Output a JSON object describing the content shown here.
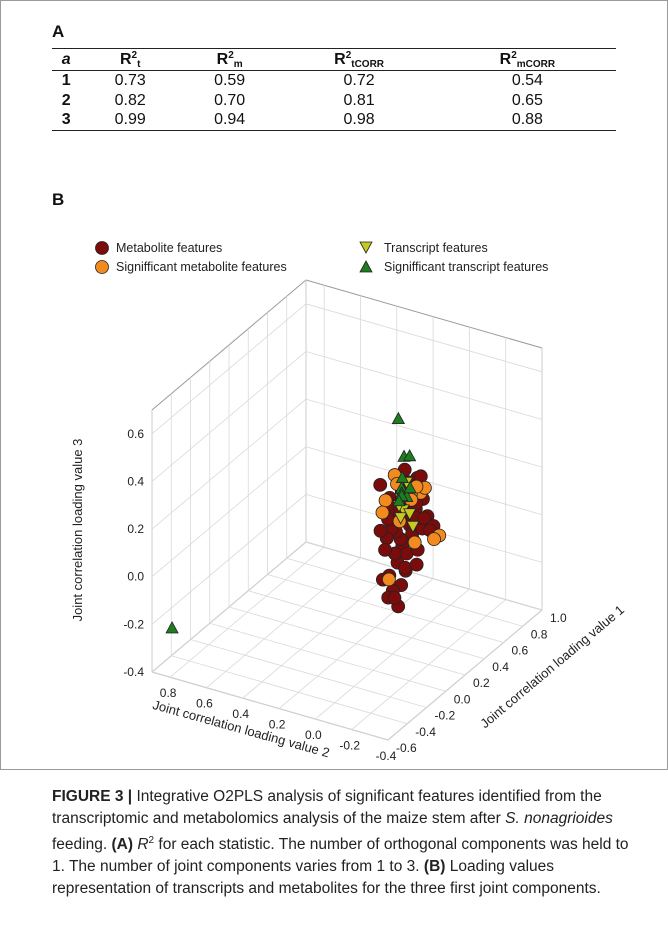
{
  "panel_a": {
    "label": "A",
    "headers": {
      "a": "a",
      "r2t": {
        "base": "R",
        "sup": "2",
        "sub": "t"
      },
      "r2m": {
        "base": "R",
        "sup": "2",
        "sub": "m"
      },
      "r2tcorr": {
        "base": "R",
        "sup": "2",
        "sub": "tCORR"
      },
      "r2mcorr": {
        "base": "R",
        "sup": "2",
        "sub": "mCORR"
      }
    },
    "rows": [
      {
        "a": "1",
        "r2t": "0.73",
        "r2m": "0.59",
        "r2tcorr": "0.72",
        "r2mcorr": "0.54"
      },
      {
        "a": "2",
        "r2t": "0.82",
        "r2m": "0.70",
        "r2tcorr": "0.81",
        "r2mcorr": "0.65"
      },
      {
        "a": "3",
        "r2t": "0.99",
        "r2m": "0.94",
        "r2tcorr": "0.98",
        "r2mcorr": "0.88"
      }
    ]
  },
  "panel_b": {
    "label": "B",
    "legend": {
      "metabolite": "Metabolite features",
      "sig_metabolite": "Signifficant metabolite features",
      "transcript": "Transcript features",
      "sig_transcript": "Signifficant transcript features"
    },
    "colors": {
      "metabolite": "#7a0c0c",
      "sig_metabolite": "#f28a1e",
      "transcript": "#c6c820",
      "sig_transcript": "#1e7d1e"
    }
  },
  "chart_data": {
    "type": "scatter",
    "title": "",
    "xlabel": "Joint correlation loading value 2",
    "ylabel": "Joint correlation loading value 1",
    "zlabel": "Joint correlation loading value 3",
    "x_ticks": [
      "0.8",
      "0.6",
      "0.4",
      "0.2",
      "0.0",
      "-0.2",
      "-0.4"
    ],
    "y_ticks": [
      "-0.6",
      "-0.4",
      "-0.2",
      "0.0",
      "0.2",
      "0.4",
      "0.6",
      "0.8",
      "1.0"
    ],
    "z_ticks": [
      "-0.4",
      "-0.2",
      "0.0",
      "0.2",
      "0.4",
      "0.6"
    ],
    "xlim": [
      -0.4,
      0.9
    ],
    "ylim": [
      -0.6,
      1.0
    ],
    "zlim": [
      -0.4,
      0.7
    ],
    "legend_position": "top",
    "series": [
      {
        "name": "Metabolite features",
        "key": "metabolite",
        "points": [
          [
            0.02,
            0.34,
            0.0
          ],
          [
            0.04,
            0.36,
            0.02
          ],
          [
            -0.01,
            0.33,
            -0.02
          ],
          [
            0.06,
            0.35,
            0.05
          ],
          [
            0.0,
            0.38,
            0.08
          ],
          [
            0.03,
            0.31,
            -0.06
          ],
          [
            0.07,
            0.37,
            0.1
          ],
          [
            -0.03,
            0.36,
            0.03
          ],
          [
            0.05,
            0.32,
            -0.03
          ],
          [
            0.01,
            0.4,
            0.12
          ],
          [
            0.08,
            0.34,
            0.06
          ],
          [
            -0.02,
            0.3,
            -0.08
          ],
          [
            0.04,
            0.39,
            0.15
          ],
          [
            0.09,
            0.36,
            0.13
          ],
          [
            0.0,
            0.34,
            0.18
          ],
          [
            0.06,
            0.41,
            0.2
          ],
          [
            -0.04,
            0.33,
            0.07
          ],
          [
            0.02,
            0.37,
            -0.1
          ],
          [
            0.1,
            0.33,
            0.02
          ],
          [
            0.03,
            0.42,
            0.24
          ],
          [
            -0.05,
            0.38,
            0.11
          ],
          [
            0.07,
            0.3,
            -0.12
          ],
          [
            0.05,
            0.45,
            0.22
          ],
          [
            -0.06,
            0.35,
            0.0
          ],
          [
            0.11,
            0.38,
            0.17
          ],
          [
            0.01,
            0.31,
            -0.15
          ],
          [
            0.08,
            0.43,
            0.09
          ],
          [
            -0.01,
            0.44,
            0.26
          ],
          [
            0.12,
            0.35,
            -0.04
          ],
          [
            0.04,
            0.28,
            -0.17
          ],
          [
            -0.03,
            0.4,
            0.19
          ],
          [
            0.09,
            0.47,
            0.14
          ],
          [
            0.02,
            0.46,
            0.05
          ],
          [
            -0.07,
            0.32,
            -0.05
          ],
          [
            0.06,
            0.27,
            -0.2
          ],
          [
            0.13,
            0.4,
            0.07
          ],
          [
            -0.02,
            0.48,
            0.16
          ],
          [
            0.1,
            0.29,
            -0.14
          ],
          [
            0.03,
            0.5,
            0.1
          ],
          [
            0.07,
            0.52,
            0.18
          ],
          [
            -0.08,
            0.36,
            0.09
          ],
          [
            0.14,
            0.43,
            0.12
          ],
          [
            0.0,
            0.26,
            -0.22
          ],
          [
            0.05,
            0.55,
            0.04
          ],
          [
            0.11,
            0.5,
            0.21
          ],
          [
            0.08,
            0.6,
            0.08
          ],
          [
            0.04,
            0.64,
            0.02
          ],
          [
            0.09,
            0.7,
            -0.02
          ],
          [
            0.06,
            0.74,
            -0.06
          ],
          [
            0.1,
            0.78,
            -0.1
          ],
          [
            0.12,
            0.3,
            0.25
          ],
          [
            -0.04,
            0.42,
            0.28
          ],
          [
            0.15,
            0.36,
            0.03
          ],
          [
            0.01,
            0.24,
            -0.18
          ],
          [
            0.07,
            0.46,
            0.27
          ]
        ]
      },
      {
        "name": "Signifficant metabolite features",
        "key": "sig_metabolite",
        "points": [
          [
            0.08,
            0.28,
            0.2
          ],
          [
            -0.05,
            0.4,
            0.22
          ],
          [
            0.12,
            0.45,
            0.24
          ],
          [
            0.15,
            0.38,
            0.1
          ],
          [
            -0.07,
            0.3,
            0.05
          ],
          [
            0.1,
            0.58,
            0.12
          ],
          [
            0.14,
            0.66,
            0.06
          ],
          [
            0.06,
            0.8,
            -0.12
          ],
          [
            0.11,
            0.84,
            -0.16
          ],
          [
            0.13,
            0.52,
            0.02
          ],
          [
            0.03,
            0.22,
            -0.1
          ],
          [
            -0.02,
            0.5,
            0.2
          ],
          [
            0.16,
            0.55,
            0.16
          ],
          [
            0.09,
            0.62,
            0.14
          ]
        ]
      },
      {
        "name": "Transcript features",
        "key": "transcript",
        "points": [
          [
            0.04,
            0.37,
            0.19
          ],
          [
            0.06,
            0.4,
            0.17
          ],
          [
            0.02,
            0.35,
            0.15
          ],
          [
            0.08,
            0.42,
            0.13
          ],
          [
            0.05,
            0.38,
            0.1
          ],
          [
            0.09,
            0.55,
            0.05
          ],
          [
            0.07,
            0.48,
            0.21
          ],
          [
            0.12,
            0.64,
            -0.04
          ]
        ]
      },
      {
        "name": "Signifficant transcript features",
        "key": "sig_transcript",
        "points": [
          [
            0.02,
            0.3,
            0.55
          ],
          [
            0.01,
            0.34,
            0.38
          ],
          [
            -0.01,
            0.36,
            0.38
          ],
          [
            0.03,
            0.36,
            0.28
          ],
          [
            0.04,
            0.37,
            0.23
          ],
          [
            0.05,
            0.39,
            0.2
          ],
          [
            0.0,
            0.35,
            0.21
          ],
          [
            0.06,
            0.41,
            0.18
          ],
          [
            0.03,
            0.44,
            0.21
          ],
          [
            0.07,
            0.4,
            0.16
          ],
          [
            0.8,
            -0.58,
            -0.2
          ]
        ]
      }
    ]
  },
  "caption": {
    "fig_label": "FIGURE 3 |",
    "main": "Integrative O2PLS analysis of significant features identified from the transcriptomic and metabolomics analysis of the maize stem after",
    "species": "S. nonagrioides",
    "after_species": "feeding.",
    "a_label": "(A)",
    "r2_base": "R",
    "r2_sup": "2",
    "a_text": "for each statistic. The number of orthogonal components was held to 1. The number of joint components varies from 1 to 3.",
    "b_label": "(B)",
    "b_text": "Loading values representation of transcripts and metabolites for the three first joint components."
  }
}
